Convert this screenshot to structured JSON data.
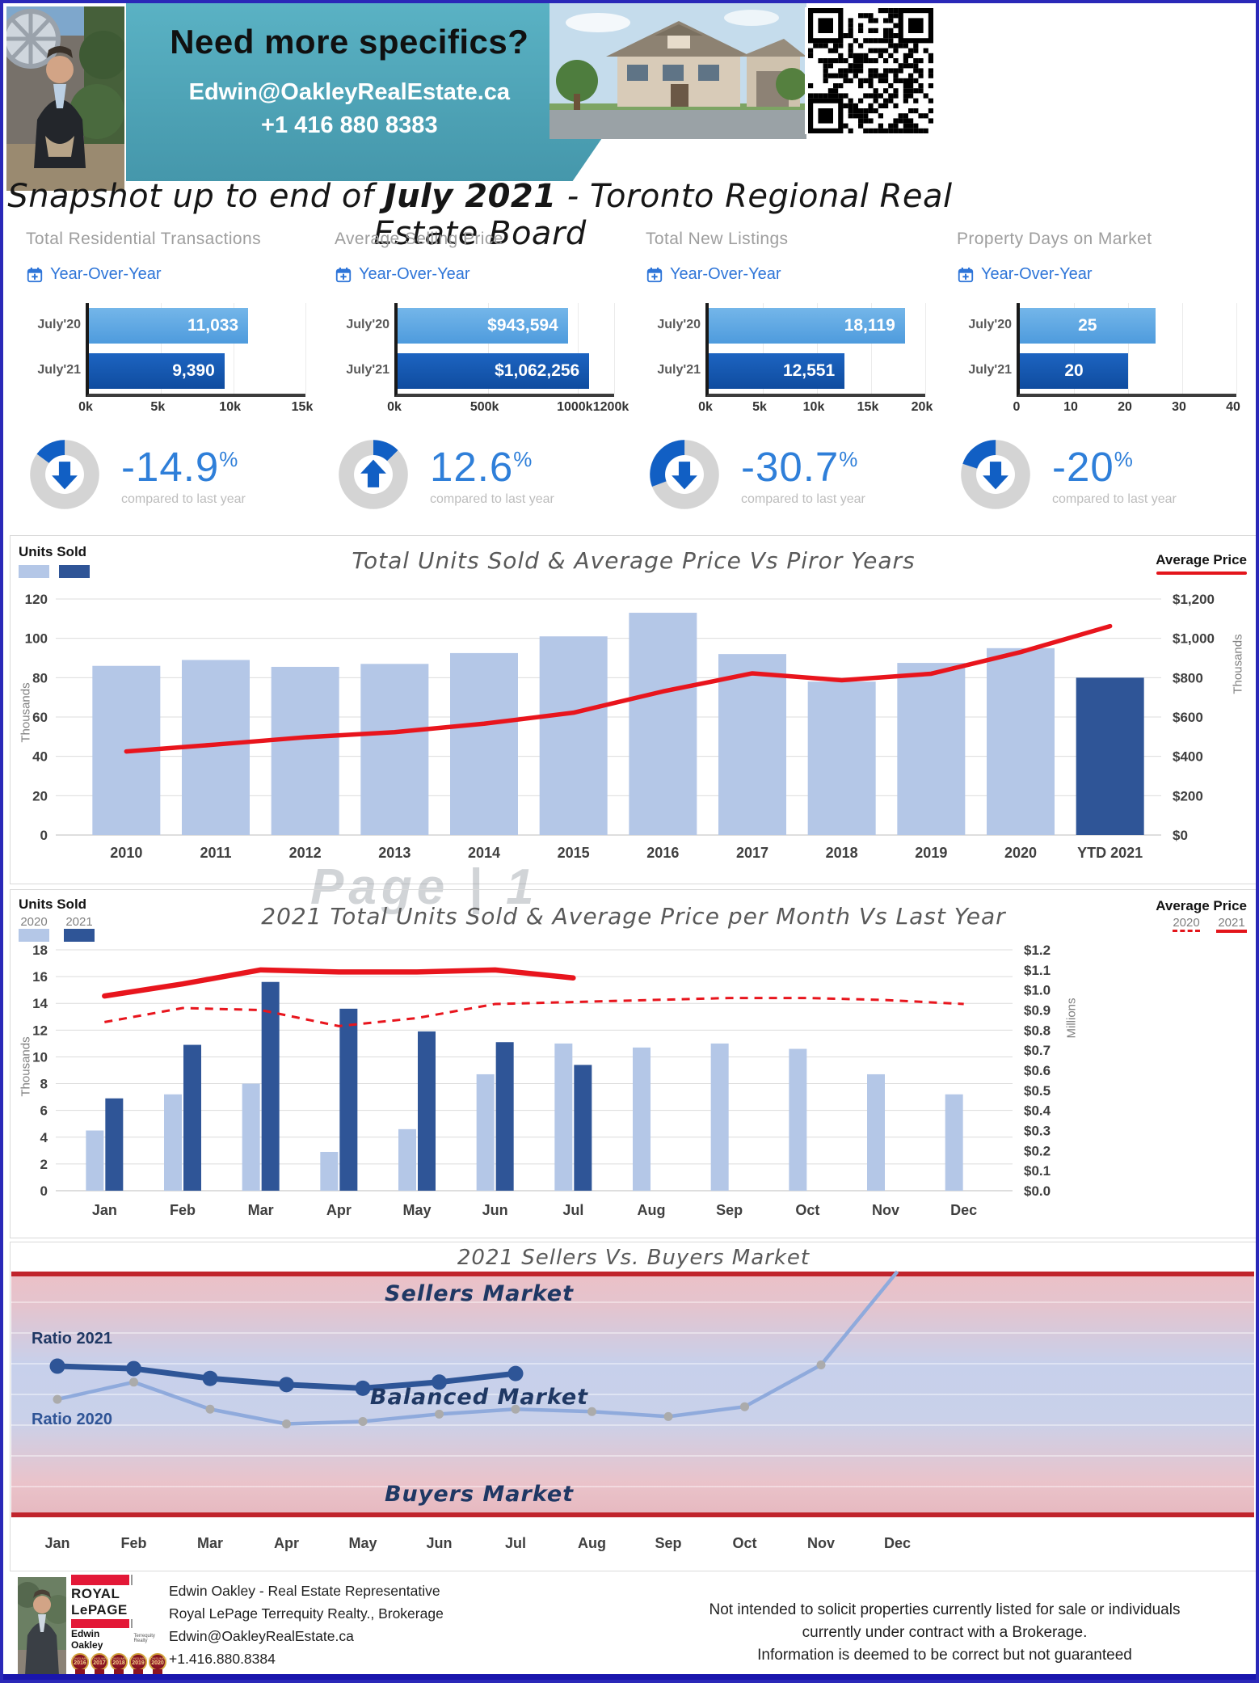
{
  "header": {
    "banner": {
      "title": "Need more specifics?",
      "email": "Edwin@OakleyRealEstate.ca",
      "phone": "+1 416 880 8383"
    }
  },
  "page_title": {
    "prefix": "Snapshot up to end of ",
    "emphasis": "July 2021",
    "suffix": " - Toronto Regional Real Estate Board"
  },
  "kpis": [
    {
      "title": "Total Residential Transactions",
      "yoy_label": "Year-Over-Year",
      "bars": [
        {
          "label": "July'20",
          "display": "11,033",
          "value": 11033
        },
        {
          "label": "July'21",
          "display": "9,390",
          "value": 9390
        }
      ],
      "axis": {
        "max": 15000,
        "ticks": [
          {
            "label": "0k",
            "value": 0
          },
          {
            "label": "5k",
            "value": 5000
          },
          {
            "label": "10k",
            "value": 10000
          },
          {
            "label": "15k",
            "value": 15000
          }
        ]
      },
      "change": {
        "display": "-14.9",
        "sign": "%",
        "note": "compared to last year",
        "direction": "down",
        "magnitude": 14.9
      }
    },
    {
      "title": "Average Selling Price",
      "yoy_label": "Year-Over-Year",
      "bars": [
        {
          "label": "July'20",
          "display": "$943,594",
          "value": 943594
        },
        {
          "label": "July'21",
          "display": "$1,062,256",
          "value": 1062256
        }
      ],
      "axis": {
        "max": 1200000,
        "ticks": [
          {
            "label": "0k",
            "value": 0
          },
          {
            "label": "500k",
            "value": 500000
          },
          {
            "label": "1000k",
            "value": 1000000
          },
          {
            "label": "1200k",
            "value": 1200000
          }
        ]
      },
      "change": {
        "display": "12.6",
        "sign": "%",
        "note": "compared to last year",
        "direction": "up",
        "magnitude": 12.6
      }
    },
    {
      "title": "Total New Listings",
      "yoy_label": "Year-Over-Year",
      "bars": [
        {
          "label": "July'20",
          "display": "18,119",
          "value": 18119
        },
        {
          "label": "July'21",
          "display": "12,551",
          "value": 12551
        }
      ],
      "axis": {
        "max": 20000,
        "ticks": [
          {
            "label": "0k",
            "value": 0
          },
          {
            "label": "5k",
            "value": 5000
          },
          {
            "label": "10k",
            "value": 10000
          },
          {
            "label": "15k",
            "value": 15000
          },
          {
            "label": "20k",
            "value": 20000
          }
        ]
      },
      "change": {
        "display": "-30.7",
        "sign": "%",
        "note": "compared to last year",
        "direction": "down",
        "magnitude": 30.7
      }
    },
    {
      "title": "Property Days on Market",
      "yoy_label": "Year-Over-Year",
      "bars": [
        {
          "label": "July'20",
          "display": "25",
          "value": 25
        },
        {
          "label": "July'21",
          "display": "20",
          "value": 20
        }
      ],
      "axis": {
        "max": 40,
        "ticks": [
          {
            "label": "0",
            "value": 0
          },
          {
            "label": "10",
            "value": 10
          },
          {
            "label": "20",
            "value": 20
          },
          {
            "label": "30",
            "value": 30
          },
          {
            "label": "40",
            "value": 40
          }
        ]
      },
      "change": {
        "display": "-20",
        "sign": "%",
        "note": "compared to last year",
        "direction": "down",
        "magnitude": 20
      }
    }
  ],
  "chart_data": [
    {
      "id": "yearly",
      "type": "bar",
      "title": "Total Units Sold & Average Price Vs Piror Years",
      "legend_left": {
        "title": "Units Sold"
      },
      "legend_right": {
        "title": "Average Price"
      },
      "categories": [
        "2010",
        "2011",
        "2012",
        "2013",
        "2014",
        "2015",
        "2016",
        "2017",
        "2018",
        "2019",
        "2020",
        "YTD 2021"
      ],
      "series": [
        {
          "name": "Units Sold",
          "unit": "Thousands",
          "values": [
            86,
            89,
            85.5,
            87,
            92.5,
            101,
            113,
            92,
            78,
            87.5,
            95,
            80
          ]
        },
        {
          "name": "Average Price",
          "unit": "Thousands $",
          "axis": "right",
          "values": [
            425,
            460,
            497,
            523,
            566,
            622,
            730,
            822,
            787,
            820,
            930,
            1062
          ]
        }
      ],
      "left_axis": {
        "label": "Thousands",
        "min": 0,
        "max": 120,
        "step": 20
      },
      "right_axis": {
        "label": "Thousands",
        "min": 0,
        "max": 1200,
        "step": 200,
        "format": "$"
      },
      "grid": true,
      "legend_position": "top"
    },
    {
      "id": "monthly",
      "type": "bar",
      "title": "2021 Total Units Sold & Average Price per Month Vs Last Year",
      "legend_left": {
        "title": "Units Sold",
        "items": [
          "2020",
          "2021"
        ]
      },
      "legend_right": {
        "title": "Average Price",
        "items": [
          "2020",
          "2021"
        ]
      },
      "categories": [
        "Jan",
        "Feb",
        "Mar",
        "Apr",
        "May",
        "Jun",
        "Jul",
        "Aug",
        "Sep",
        "Oct",
        "Nov",
        "Dec"
      ],
      "series": [
        {
          "name": "Units Sold 2020",
          "unit": "Thousands",
          "values": [
            4.5,
            7.2,
            8.0,
            2.9,
            4.6,
            8.7,
            11.0,
            10.7,
            11.0,
            10.6,
            8.7,
            7.2
          ]
        },
        {
          "name": "Units Sold 2021",
          "unit": "Thousands",
          "values": [
            6.9,
            10.9,
            15.6,
            13.6,
            11.9,
            11.1,
            9.4
          ]
        },
        {
          "name": "Average Price 2020",
          "unit": "Millions $",
          "axis": "right",
          "style": "dashed",
          "values": [
            0.84,
            0.91,
            0.9,
            0.82,
            0.86,
            0.93,
            0.94,
            0.95,
            0.96,
            0.96,
            0.95,
            0.93
          ]
        },
        {
          "name": "Average Price 2021",
          "unit": "Millions $",
          "axis": "right",
          "style": "solid",
          "values": [
            0.97,
            1.03,
            1.1,
            1.09,
            1.09,
            1.1,
            1.06
          ]
        }
      ],
      "left_axis": {
        "label": "Thousands",
        "min": 0,
        "max": 18,
        "step": 2
      },
      "right_axis": {
        "label": "Millions",
        "min": 0,
        "max": 1.2,
        "step": 0.1,
        "format": "$"
      },
      "grid": true,
      "legend_position": "top"
    },
    {
      "id": "market",
      "type": "line",
      "title": "2021 Sellers Vs. Buyers Market",
      "zone_labels": [
        "Sellers Market",
        "Balanced Market",
        "Buyers Market"
      ],
      "categories": [
        "Jan",
        "Feb",
        "Mar",
        "Apr",
        "May",
        "Jun",
        "Jul",
        "Aug",
        "Sep",
        "Oct",
        "Nov",
        "Dec"
      ],
      "scale": {
        "min": 0,
        "max": 1
      },
      "series": [
        {
          "name": "Ratio 2021",
          "values": [
            0.615,
            0.605,
            0.565,
            0.54,
            0.525,
            0.55,
            0.585
          ]
        },
        {
          "name": "Ratio 2020",
          "values": [
            0.48,
            0.55,
            0.44,
            0.38,
            0.39,
            0.42,
            0.44,
            0.43,
            0.41,
            0.45,
            0.62,
            1.0
          ]
        }
      ]
    }
  ],
  "watermark": "Page | 1",
  "footer": {
    "agent_line": "Edwin Oakley - Real Estate Representative",
    "brokerage_line": "Royal LePage Terrequity Realty., Brokerage",
    "email": "Edwin@OakleyRealEstate.ca",
    "phone": "+1.416.880.8384",
    "logo": {
      "brand": "ROYAL LePAGE",
      "agent": "Edwin Oakley",
      "sub": "Terrequity Realty",
      "badge_top": "CONSUMER"
    },
    "awards_years": [
      "2016",
      "2017",
      "2018",
      "2019",
      "2020"
    ],
    "disclaimer": [
      "Not intended to solicit properties currently listed for sale or individuals",
      "currently under contract with a Brokerage.",
      "Information is deemed to be correct but not guaranteed"
    ]
  },
  "colors": {
    "accent_blue": "#2e75d8",
    "kpi_light_bar": "#4e9bdd",
    "kpi_dark_bar": "#0f4c9f",
    "chart_light_bar": "#b4c7e7",
    "chart_dark_bar": "#2f5597",
    "price_line_red": "#e3151b",
    "teal_banner": "#4da4b8",
    "navy_text": "#1f3864",
    "ratio_2020_line": "#8faadc",
    "royal_lepage_red": "#e31837",
    "donut_gray": "#d4d4d4"
  }
}
